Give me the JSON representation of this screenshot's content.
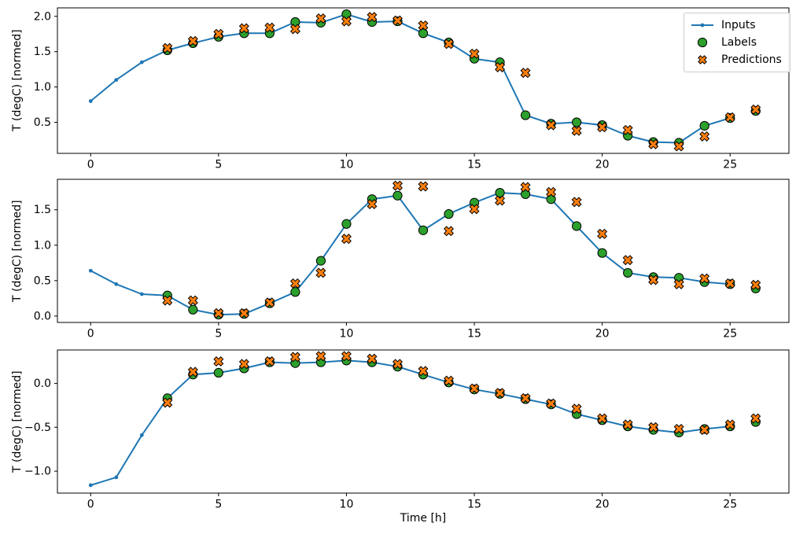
{
  "figure": {
    "ylabel": "T (degC) [normed]",
    "xlabel": "Time [h]",
    "legend": {
      "position": "upper-right",
      "items": [
        {
          "label": "Inputs",
          "marker": "line-with-dot"
        },
        {
          "label": "Labels",
          "marker": "filled-circle"
        },
        {
          "label": "Predictions",
          "marker": "filled-x"
        }
      ]
    },
    "colors": {
      "inputs": "#1f77b4",
      "labels": "#2ca02c",
      "predictions": "#ff7f0e",
      "marker_edge": "#000000",
      "axes_edge": "#000000",
      "legend_border": "#cccccc"
    }
  },
  "chart_data": [
    {
      "type": "line",
      "title": "",
      "xlabel": "",
      "ylabel": "T (degC) [normed]",
      "xlim": [
        -1.3,
        27.3
      ],
      "ylim": [
        0.06,
        2.12
      ],
      "xticks": [
        0,
        5,
        10,
        15,
        20,
        25
      ],
      "xticklabels": [
        "0",
        "5",
        "10",
        "15",
        "20",
        "25"
      ],
      "yticks": [
        0.5,
        1.0,
        1.5,
        2.0
      ],
      "yticklabels": [
        "0.5",
        "1.0",
        "1.5",
        "2.0"
      ],
      "grid": false,
      "legend": true,
      "series": [
        {
          "name": "Inputs",
          "type": "line",
          "marker": "dot",
          "color": "#1f77b4",
          "x": [
            0,
            1,
            2,
            3,
            4,
            5,
            6,
            7,
            8,
            9,
            10,
            11,
            12,
            13,
            14,
            15,
            16,
            17,
            18,
            19,
            20,
            21,
            22,
            23,
            24,
            25
          ],
          "y": [
            0.8,
            1.1,
            1.35,
            1.52,
            1.62,
            1.71,
            1.76,
            1.76,
            1.92,
            1.91,
            2.03,
            1.92,
            1.93,
            1.76,
            1.63,
            1.4,
            1.35,
            0.6,
            0.48,
            0.5,
            0.46,
            0.31,
            0.22,
            0.21,
            0.45,
            0.56
          ]
        },
        {
          "name": "Labels",
          "type": "scatter",
          "marker": "circle",
          "color": "#2ca02c",
          "x": [
            3,
            4,
            5,
            6,
            7,
            8,
            9,
            10,
            11,
            12,
            13,
            14,
            15,
            16,
            17,
            18,
            19,
            20,
            21,
            22,
            23,
            24,
            25,
            26
          ],
          "y": [
            1.52,
            1.62,
            1.71,
            1.76,
            1.76,
            1.92,
            1.91,
            2.03,
            1.92,
            1.93,
            1.76,
            1.63,
            1.4,
            1.35,
            0.6,
            0.48,
            0.5,
            0.46,
            0.31,
            0.22,
            0.21,
            0.45,
            0.56,
            0.66
          ]
        },
        {
          "name": "Predictions",
          "type": "scatter",
          "marker": "X",
          "color": "#ff7f0e",
          "x": [
            3,
            4,
            5,
            6,
            7,
            8,
            9,
            10,
            11,
            12,
            13,
            14,
            15,
            16,
            17,
            18,
            19,
            20,
            21,
            22,
            23,
            24,
            25,
            26
          ],
          "y": [
            1.55,
            1.65,
            1.75,
            1.83,
            1.84,
            1.82,
            1.97,
            1.93,
            1.99,
            1.94,
            1.87,
            1.61,
            1.47,
            1.28,
            1.2,
            0.46,
            0.38,
            0.43,
            0.39,
            0.19,
            0.16,
            0.3,
            0.57,
            0.68
          ]
        }
      ]
    },
    {
      "type": "line",
      "title": "",
      "xlabel": "",
      "ylabel": "T (degC) [normed]",
      "xlim": [
        -1.3,
        27.3
      ],
      "ylim": [
        -0.09,
        1.93
      ],
      "xticks": [
        0,
        5,
        10,
        15,
        20,
        25
      ],
      "xticklabels": [
        "0",
        "5",
        "10",
        "15",
        "20",
        "25"
      ],
      "yticks": [
        0.0,
        0.5,
        1.0,
        1.5
      ],
      "yticklabels": [
        "0.0",
        "0.5",
        "1.0",
        "1.5"
      ],
      "grid": false,
      "legend": false,
      "series": [
        {
          "name": "Inputs",
          "type": "line",
          "marker": "dot",
          "color": "#1f77b4",
          "x": [
            0,
            1,
            2,
            3,
            4,
            5,
            6,
            7,
            8,
            9,
            10,
            11,
            12,
            13,
            14,
            15,
            16,
            17,
            18,
            19,
            20,
            21,
            22,
            23,
            24,
            25
          ],
          "y": [
            0.64,
            0.45,
            0.31,
            0.29,
            0.09,
            0.02,
            0.03,
            0.18,
            0.34,
            0.78,
            1.3,
            1.65,
            1.7,
            1.21,
            1.44,
            1.6,
            1.74,
            1.72,
            1.65,
            1.27,
            0.89,
            0.61,
            0.55,
            0.54,
            0.48,
            0.45
          ]
        },
        {
          "name": "Labels",
          "type": "scatter",
          "marker": "circle",
          "color": "#2ca02c",
          "x": [
            3,
            4,
            5,
            6,
            7,
            8,
            9,
            10,
            11,
            12,
            13,
            14,
            15,
            16,
            17,
            18,
            19,
            20,
            21,
            22,
            23,
            24,
            25,
            26
          ],
          "y": [
            0.29,
            0.09,
            0.02,
            0.03,
            0.18,
            0.34,
            0.78,
            1.3,
            1.65,
            1.7,
            1.21,
            1.44,
            1.6,
            1.74,
            1.72,
            1.65,
            1.27,
            0.89,
            0.61,
            0.55,
            0.54,
            0.48,
            0.45,
            0.39
          ]
        },
        {
          "name": "Predictions",
          "type": "scatter",
          "marker": "X",
          "color": "#ff7f0e",
          "x": [
            3,
            4,
            5,
            6,
            7,
            8,
            9,
            10,
            11,
            12,
            13,
            14,
            15,
            16,
            17,
            18,
            19,
            20,
            21,
            22,
            23,
            24,
            25,
            26
          ],
          "y": [
            0.22,
            0.22,
            0.04,
            0.04,
            0.19,
            0.46,
            0.61,
            1.09,
            1.58,
            1.84,
            1.83,
            1.2,
            1.51,
            1.63,
            1.82,
            1.75,
            1.61,
            1.16,
            0.79,
            0.51,
            0.45,
            0.53,
            0.46,
            0.44
          ]
        }
      ]
    },
    {
      "type": "line",
      "title": "",
      "xlabel": "Time [h]",
      "ylabel": "T (degC) [normed]",
      "xlim": [
        -1.3,
        27.3
      ],
      "ylim": [
        -1.25,
        0.38
      ],
      "xticks": [
        0,
        5,
        10,
        15,
        20,
        25
      ],
      "xticklabels": [
        "0",
        "5",
        "10",
        "15",
        "20",
        "25"
      ],
      "yticks": [
        0.0,
        -0.5,
        -1.0
      ],
      "yticklabels": [
        "0.0",
        "−0.5",
        "−1.0"
      ],
      "grid": false,
      "legend": false,
      "series": [
        {
          "name": "Inputs",
          "type": "line",
          "marker": "dot",
          "color": "#1f77b4",
          "x": [
            0,
            1,
            2,
            3,
            4,
            5,
            6,
            7,
            8,
            9,
            10,
            11,
            12,
            13,
            14,
            15,
            16,
            17,
            18,
            19,
            20,
            21,
            22,
            23,
            24,
            25
          ],
          "y": [
            -1.16,
            -1.07,
            -0.59,
            -0.17,
            0.1,
            0.12,
            0.17,
            0.24,
            0.23,
            0.24,
            0.26,
            0.24,
            0.19,
            0.1,
            0.01,
            -0.07,
            -0.12,
            -0.18,
            -0.24,
            -0.35,
            -0.42,
            -0.49,
            -0.53,
            -0.56,
            -0.52,
            -0.49
          ]
        },
        {
          "name": "Labels",
          "type": "scatter",
          "marker": "circle",
          "color": "#2ca02c",
          "x": [
            3,
            4,
            5,
            6,
            7,
            8,
            9,
            10,
            11,
            12,
            13,
            14,
            15,
            16,
            17,
            18,
            19,
            20,
            21,
            22,
            23,
            24,
            25,
            26
          ],
          "y": [
            -0.17,
            0.1,
            0.12,
            0.17,
            0.24,
            0.23,
            0.24,
            0.26,
            0.24,
            0.19,
            0.1,
            0.01,
            -0.07,
            -0.12,
            -0.18,
            -0.24,
            -0.35,
            -0.42,
            -0.49,
            -0.53,
            -0.56,
            -0.52,
            -0.49,
            -0.44
          ]
        },
        {
          "name": "Predictions",
          "type": "scatter",
          "marker": "X",
          "color": "#ff7f0e",
          "x": [
            3,
            4,
            5,
            6,
            7,
            8,
            9,
            10,
            11,
            12,
            13,
            14,
            15,
            16,
            17,
            18,
            19,
            20,
            21,
            22,
            23,
            24,
            25,
            26
          ],
          "y": [
            -0.22,
            0.13,
            0.25,
            0.22,
            0.25,
            0.3,
            0.31,
            0.31,
            0.28,
            0.22,
            0.14,
            0.03,
            -0.06,
            -0.11,
            -0.17,
            -0.23,
            -0.29,
            -0.4,
            -0.47,
            -0.5,
            -0.52,
            -0.53,
            -0.47,
            -0.4
          ]
        }
      ]
    }
  ]
}
